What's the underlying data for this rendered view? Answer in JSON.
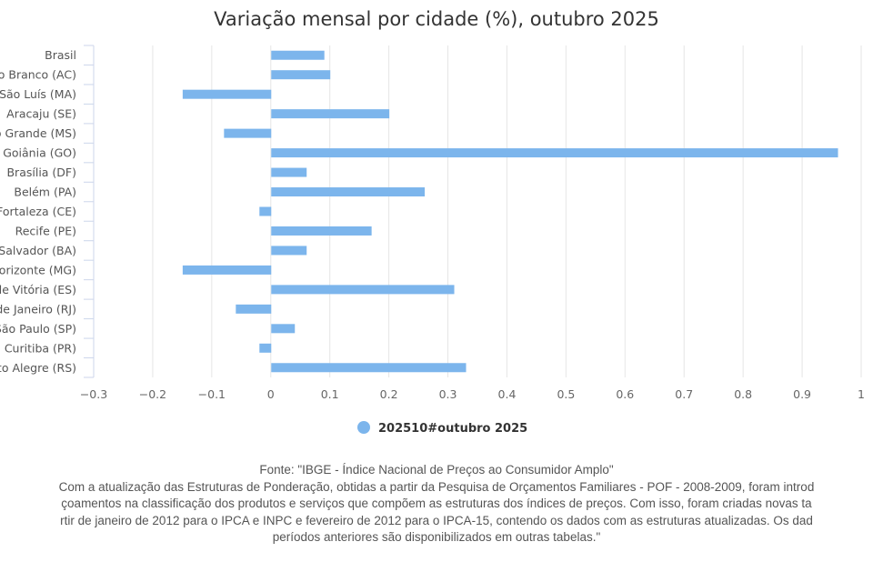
{
  "chart_data": {
    "type": "bar",
    "orientation": "horizontal",
    "title": "Variação mensal por cidade (%), outubro 2025",
    "categories": [
      "Brasil",
      "Rio Branco (AC)",
      "São Luís (MA)",
      "Aracaju (SE)",
      "Campo Grande (MS)",
      "Goiânia (GO)",
      "Brasília (DF)",
      "Belém (PA)",
      "Fortaleza (CE)",
      "Recife (PE)",
      "Salvador (BA)",
      "Belo Horizonte (MG)",
      "Grande Vitória (ES)",
      "Rio de Janeiro (RJ)",
      "São Paulo (SP)",
      "Curitiba (PR)",
      "Porto Alegre (RS)"
    ],
    "series": [
      {
        "name": "202510#outubro 2025",
        "color": "#7cb5ec",
        "values": [
          0.09,
          0.1,
          -0.15,
          0.2,
          -0.08,
          0.96,
          0.06,
          0.26,
          -0.02,
          0.17,
          0.06,
          -0.15,
          0.31,
          -0.06,
          0.04,
          -0.02,
          0.33
        ]
      }
    ],
    "xlim": [
      -0.3,
      1
    ],
    "xticks": [
      "−0.3",
      "−0.2",
      "−0.1",
      "0",
      "0.1",
      "0.2",
      "0.3",
      "0.4",
      "0.5",
      "0.6",
      "0.7",
      "0.8",
      "0.9",
      "1"
    ],
    "xtick_values": [
      -0.3,
      -0.2,
      -0.1,
      0,
      0.1,
      0.2,
      0.3,
      0.4,
      0.5,
      0.6,
      0.7,
      0.8,
      0.9,
      1
    ],
    "grid": true,
    "legend_position": "bottom"
  },
  "footer": {
    "lines": [
      "Fonte: \"IBGE - Índice Nacional de Preços ao Consumidor Amplo\"",
      "Com a atualização das Estruturas de Ponderação, obtidas a partir da Pesquisa de Orçamentos Familiares - POF - 2008-2009, foram introd",
      "çoamentos na classificação dos produtos e serviços que compõem as estruturas dos índices de preços. Com isso, foram criadas novas ta",
      "rtir de janeiro de 2012 para o IPCA e INPC e fevereiro de 2012 para o IPCA-15, contendo os dados com as estruturas atualizadas. Os dad",
      "períodos anteriores são disponibilizados em outras tabelas.\""
    ]
  }
}
